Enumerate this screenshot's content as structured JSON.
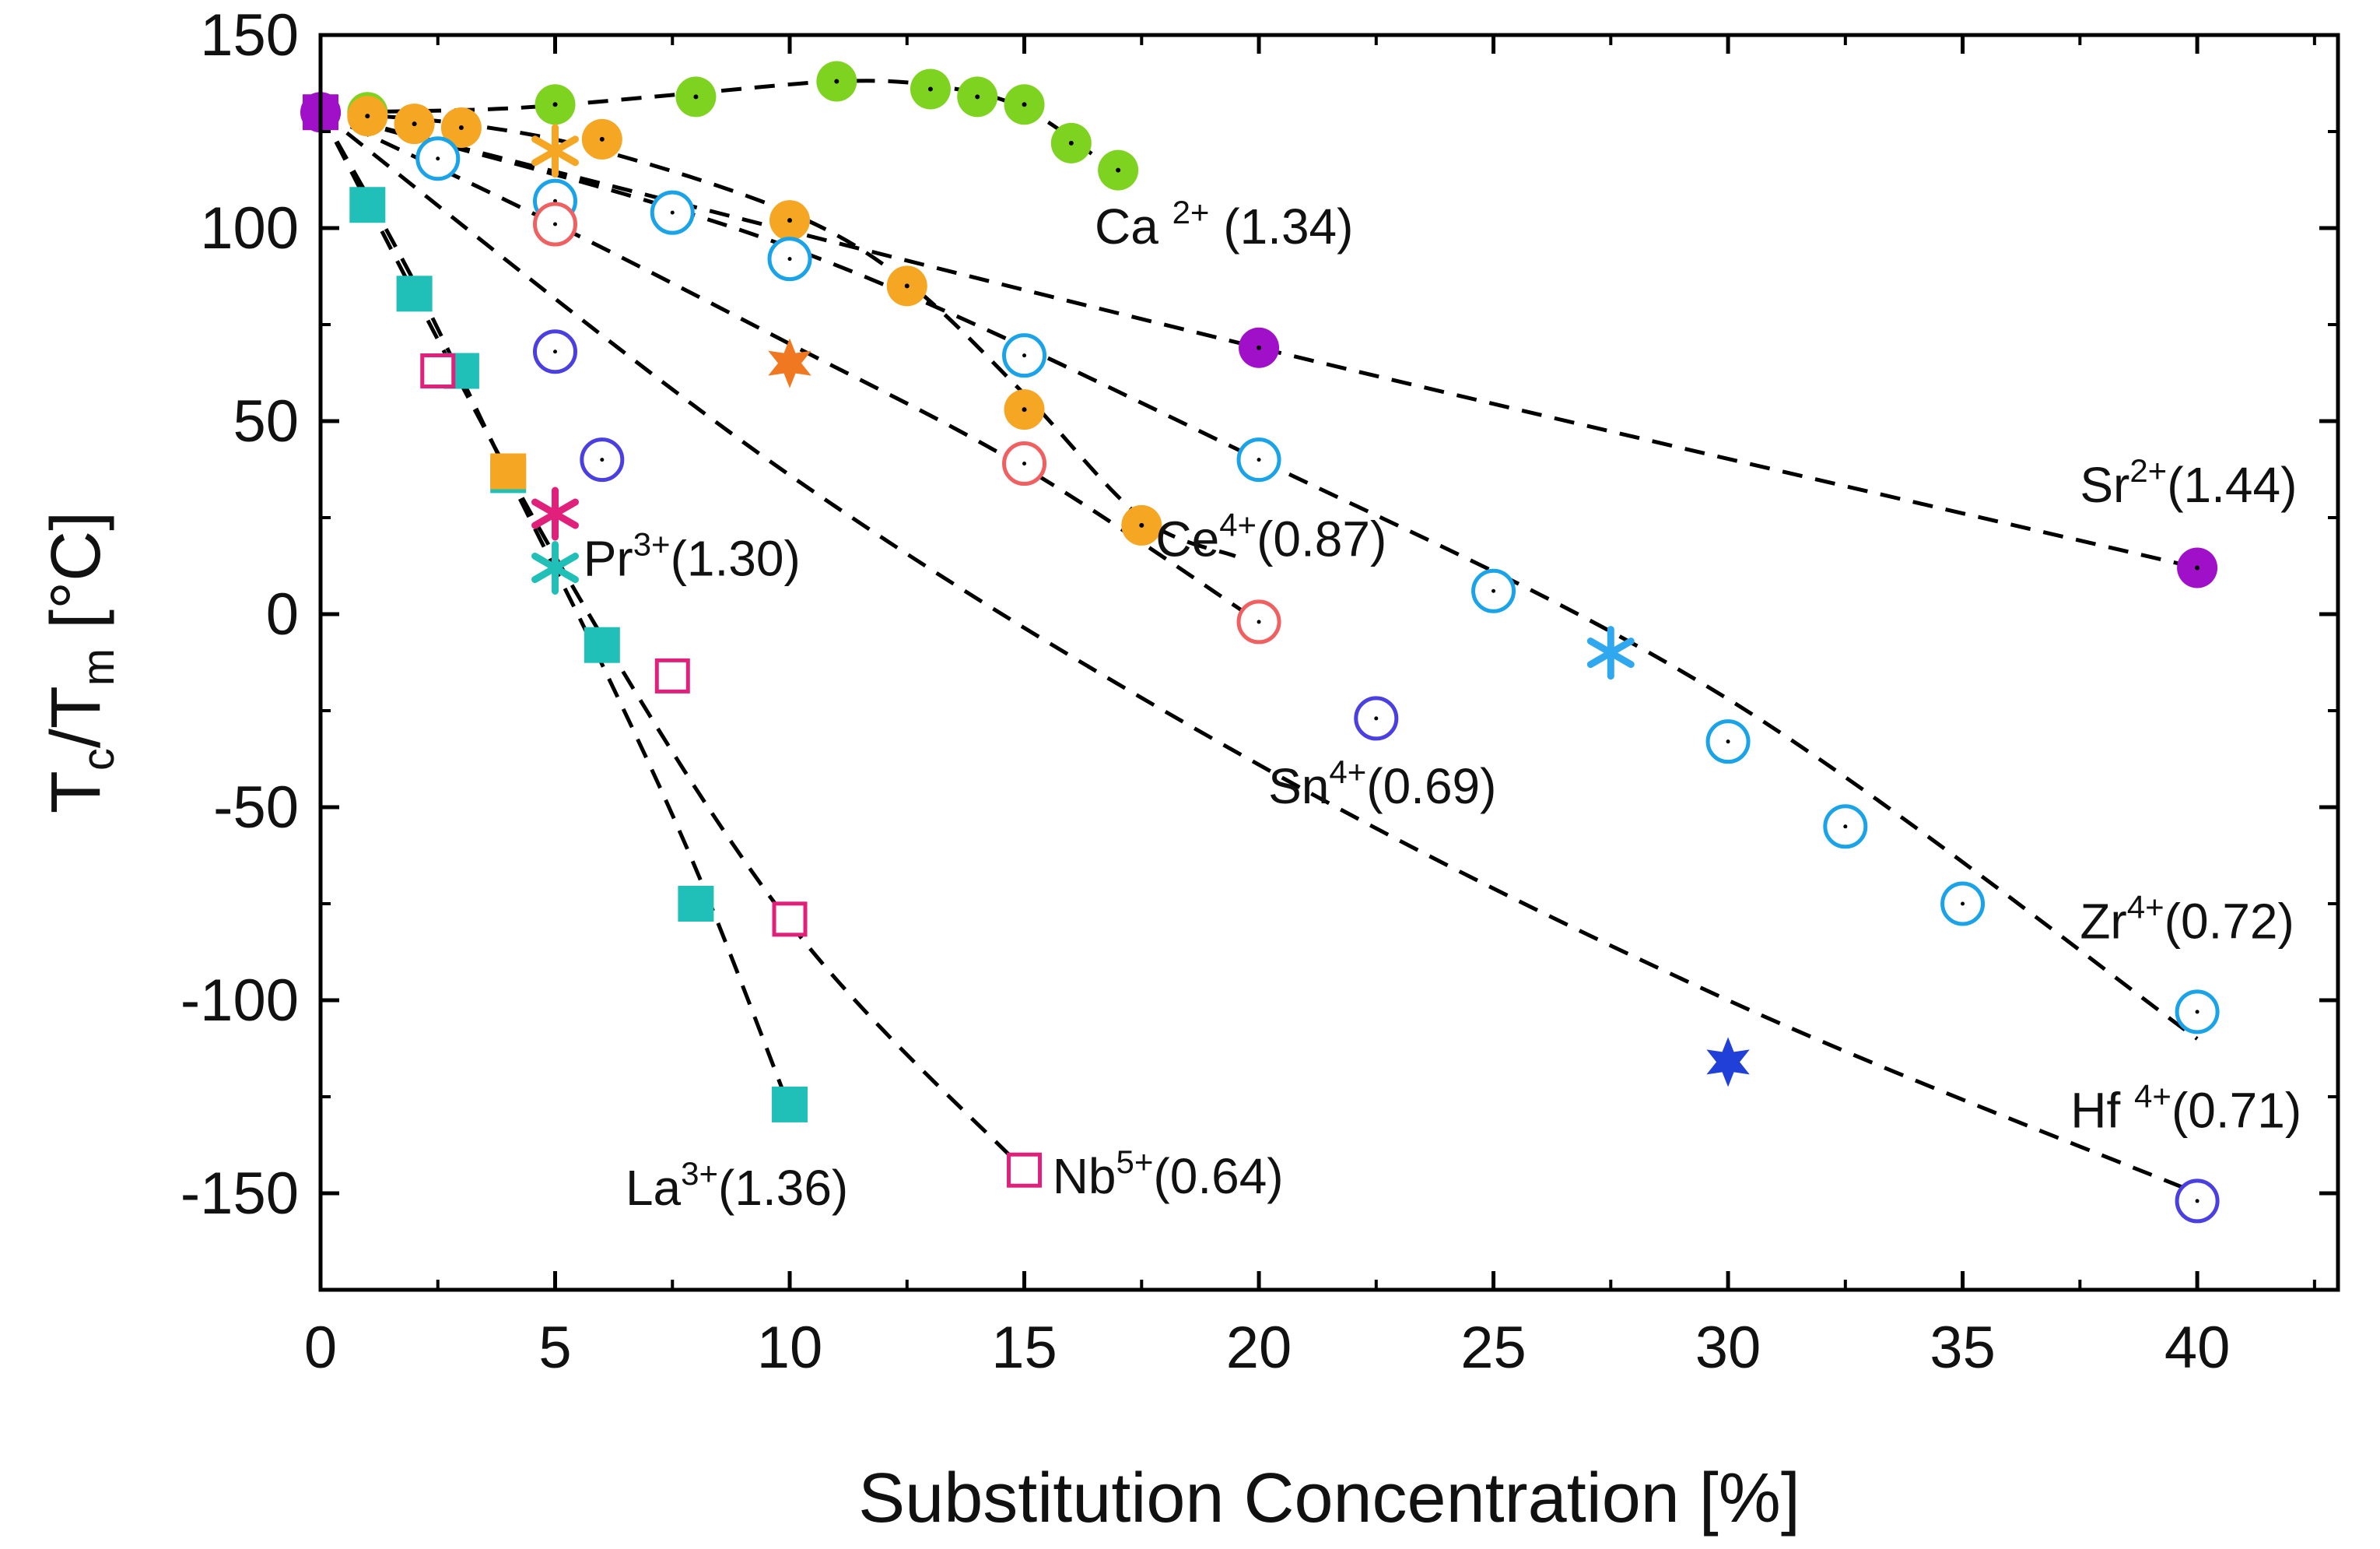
{
  "chart_data": {
    "type": "scatter",
    "xlabel": "Substitution Concentration [%]",
    "ylabel": {
      "base": "T",
      "sub1": "c",
      "slash": "/T",
      "sub2": "m",
      "unit": " [°C]"
    },
    "xlim": [
      0,
      43
    ],
    "ylim": [
      -175,
      150
    ],
    "xticks": [
      0,
      5,
      10,
      15,
      20,
      25,
      30,
      35,
      40
    ],
    "yticks": [
      150,
      100,
      50,
      0,
      -50,
      -100,
      -150
    ],
    "grid": false,
    "series": [
      {
        "name": "Ca2+",
        "ion": "Ca",
        "charge": "2+",
        "radius": "(1.34)",
        "label_sep": " ",
        "marker": "circle-filled",
        "color": "#7ed321",
        "x": [
          1,
          5,
          8,
          11,
          13,
          14,
          15,
          16,
          17
        ],
        "y": [
          130,
          132,
          134,
          138,
          136,
          134,
          132,
          122,
          115
        ],
        "fit_x": [
          0,
          4,
          8,
          11,
          13,
          15,
          17
        ],
        "fit_y": [
          130,
          131,
          135,
          138,
          137,
          131,
          114
        ]
      },
      {
        "name": "Sr2+",
        "ion": "Sr",
        "charge": "2+",
        "radius": "(1.44)",
        "label_sep": "",
        "marker": "circle-filled",
        "color": "#a010c8",
        "x": [
          0,
          20,
          40
        ],
        "y": [
          130,
          69,
          12
        ],
        "fit_x": [
          0,
          20,
          40
        ],
        "fit_y": [
          130,
          69,
          12
        ]
      },
      {
        "name": "Ce4+",
        "ion": "Ce",
        "charge": "4+",
        "radius": "(0.87)",
        "label_sep": "",
        "marker": "circle-filled",
        "color": "#f5a623",
        "x": [
          1,
          2,
          3,
          6,
          10,
          12.5,
          15,
          17.5
        ],
        "y": [
          129,
          127,
          126,
          123,
          102,
          85,
          53,
          23
        ],
        "fit_x": [
          0,
          3,
          6,
          10,
          12.5,
          15,
          17.5,
          19.5
        ],
        "fit_y": [
          130,
          127,
          120,
          104,
          86,
          57,
          25,
          15
        ]
      },
      {
        "name": "Zr4+",
        "ion": "Zr",
        "charge": "4+",
        "radius": "(0.72)",
        "label_sep": "",
        "marker": "circle-open",
        "color": "#1aa3e8",
        "x": [
          2.5,
          5,
          7.5,
          10,
          15,
          20,
          25,
          30,
          32.5,
          35,
          40
        ],
        "y": [
          118,
          107,
          104,
          92,
          67,
          40,
          6,
          -33,
          -55,
          -75,
          -103
        ],
        "fit_x": [
          0,
          10,
          20,
          30,
          40
        ],
        "fit_y": [
          130,
          95,
          40,
          -22,
          -110
        ]
      },
      {
        "name": "Sn4+",
        "ion": "Sn",
        "charge": "4+",
        "radius": "(0.69)",
        "label_sep": "",
        "marker": "circle-open",
        "color": "#f06060",
        "x": [
          5,
          15,
          20
        ],
        "y": [
          101,
          39,
          -2
        ],
        "fit_x": [
          0,
          5,
          10,
          15,
          20
        ],
        "fit_y": [
          130,
          101,
          70,
          38,
          -2
        ]
      },
      {
        "name": "Hf4+",
        "ion": "Hf",
        "charge": "4+",
        "radius": "(0.71)",
        "label_sep": " ",
        "marker": "circle-open",
        "color": "#4a3fe0",
        "x": [
          5,
          6,
          22.5,
          40
        ],
        "y": [
          68,
          40,
          -27,
          -152
        ],
        "fit_x": [
          0,
          10,
          20,
          30,
          40
        ],
        "fit_y": [
          130,
          36,
          -39,
          -100,
          -150
        ]
      },
      {
        "name": "La3+",
        "ion": "La",
        "charge": "3+",
        "radius": "(1.36)",
        "label_sep": "",
        "marker": "square-filled",
        "color": "#20bfb8",
        "x": [
          1,
          2,
          3,
          4,
          6,
          8,
          10
        ],
        "y": [
          106,
          83,
          63,
          36,
          -8,
          -75,
          -127
        ],
        "fit_x": [
          0,
          2,
          4,
          6,
          8,
          10
        ],
        "fit_y": [
          130,
          86,
          36,
          -13,
          -66,
          -128
        ]
      },
      {
        "name": "Nb5+",
        "ion": "Nb",
        "charge": "5+",
        "radius": "(0.64)",
        "label_sep": "",
        "marker": "square-open",
        "color": "#e0207a",
        "x": [
          2.5,
          7.5,
          10,
          15
        ],
        "y": [
          63,
          -16,
          -79,
          -144
        ],
        "fit_x": [
          0,
          5,
          10,
          15
        ],
        "fit_y": [
          130,
          15,
          -80,
          -144
        ]
      },
      {
        "name": "Pr3+",
        "ion": "Pr",
        "charge": "3+",
        "radius": "(1.30)",
        "label_sep": "",
        "marker": "none",
        "color": "#e0207a",
        "x": [],
        "y": []
      }
    ],
    "extra_points": [
      {
        "x": 0,
        "y": 130,
        "marker": "square-filled",
        "color": "#a010c8"
      },
      {
        "x": 4,
        "y": 37,
        "marker": "square-filled",
        "color": "#f5a623"
      }
    ],
    "stars": [
      {
        "x": 5,
        "y": 120,
        "color": "#f5a623",
        "shape": "asterisk"
      },
      {
        "x": 10,
        "y": 65,
        "color": "#f07820",
        "shape": "star6"
      },
      {
        "x": 5,
        "y": 26,
        "color": "#e0207a",
        "shape": "asterisk"
      },
      {
        "x": 5,
        "y": 12,
        "color": "#20bfb8",
        "shape": "asterisk"
      },
      {
        "x": 27.5,
        "y": -10,
        "color": "#30a8f0",
        "shape": "asterisk"
      },
      {
        "x": 30,
        "y": -116,
        "color": "#2040d8",
        "shape": "star6"
      }
    ],
    "annotations": [
      {
        "series": "Ca2+",
        "x": 16.5,
        "y": 96,
        "anchor": "start"
      },
      {
        "series": "Sr2+",
        "x": 37.5,
        "y": 29,
        "anchor": "start"
      },
      {
        "series": "Ce4+",
        "x": 17.8,
        "y": 15,
        "anchor": "start"
      },
      {
        "series": "Sn4+",
        "x": 20.2,
        "y": -49,
        "anchor": "start"
      },
      {
        "series": "Zr4+",
        "x": 37.5,
        "y": -84,
        "anchor": "start"
      },
      {
        "series": "Hf4+",
        "x": 37.3,
        "y": -133,
        "anchor": "start"
      },
      {
        "series": "La3+",
        "x": 6.5,
        "y": -153,
        "anchor": "start"
      },
      {
        "series": "Nb5+",
        "x": 15.6,
        "y": -150,
        "anchor": "start"
      },
      {
        "series": "Pr3+",
        "x": 5.6,
        "y": 10,
        "anchor": "start"
      }
    ]
  }
}
